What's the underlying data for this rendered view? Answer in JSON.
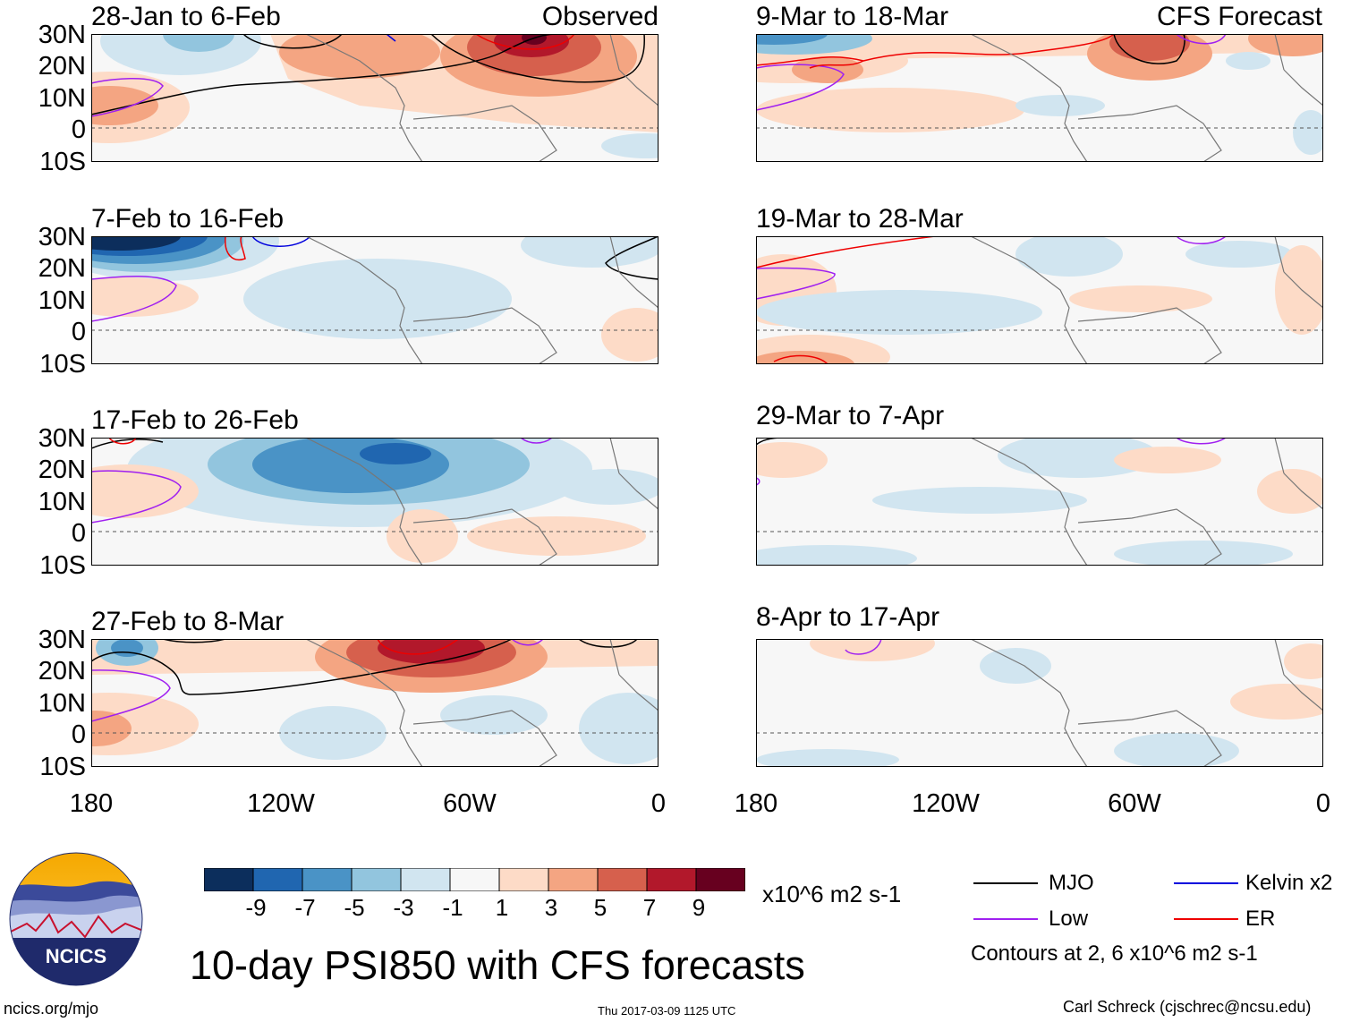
{
  "panels_left": [
    {
      "title": "28-Jan to 6-Feb",
      "subtitle": "Observed"
    },
    {
      "title": "7-Feb to 16-Feb",
      "subtitle": ""
    },
    {
      "title": "17-Feb to 26-Feb",
      "subtitle": ""
    },
    {
      "title": "27-Feb to 8-Mar",
      "subtitle": ""
    }
  ],
  "panels_right": [
    {
      "title": "9-Mar to 18-Mar",
      "subtitle": "CFS Forecast"
    },
    {
      "title": "19-Mar to 28-Mar",
      "subtitle": ""
    },
    {
      "title": "29-Mar to 7-Apr",
      "subtitle": ""
    },
    {
      "title": "8-Apr to 17-Apr",
      "subtitle": ""
    }
  ],
  "lat_labels": [
    "30N",
    "20N",
    "10N",
    "0",
    "10S"
  ],
  "lon_labels": [
    "180",
    "120W",
    "60W",
    "0"
  ],
  "colorbar": {
    "ticks": [
      "-9",
      "-7",
      "-5",
      "-3",
      "-1",
      "1",
      "3",
      "5",
      "7",
      "9"
    ],
    "units": "x10^6 m2 s-1",
    "colors": [
      "#0c2e5c",
      "#2066b0",
      "#4a93c6",
      "#92c5de",
      "#d1e5f0",
      "#f7f7f7",
      "#fddbc7",
      "#f4a582",
      "#d6604d",
      "#b2182b",
      "#67001f"
    ]
  },
  "legend": {
    "items": [
      {
        "label": "MJO",
        "color": "#000000"
      },
      {
        "label": "Kelvin x2",
        "color": "#0000dd"
      },
      {
        "label": "Low",
        "color": "#a020f0"
      },
      {
        "label": "ER",
        "color": "#ee0000"
      }
    ],
    "note": "Contours at 2, 6 x10^6 m2 s-1"
  },
  "logo_text": "NCICS",
  "main_title": "10-day PSI850 with CFS forecasts",
  "footer": {
    "left": "ncics.org/mjo",
    "center": "Thu 2017-03-09 1125 UTC",
    "right": "Carl Schreck (cjschrec@ncsu.edu)"
  }
}
